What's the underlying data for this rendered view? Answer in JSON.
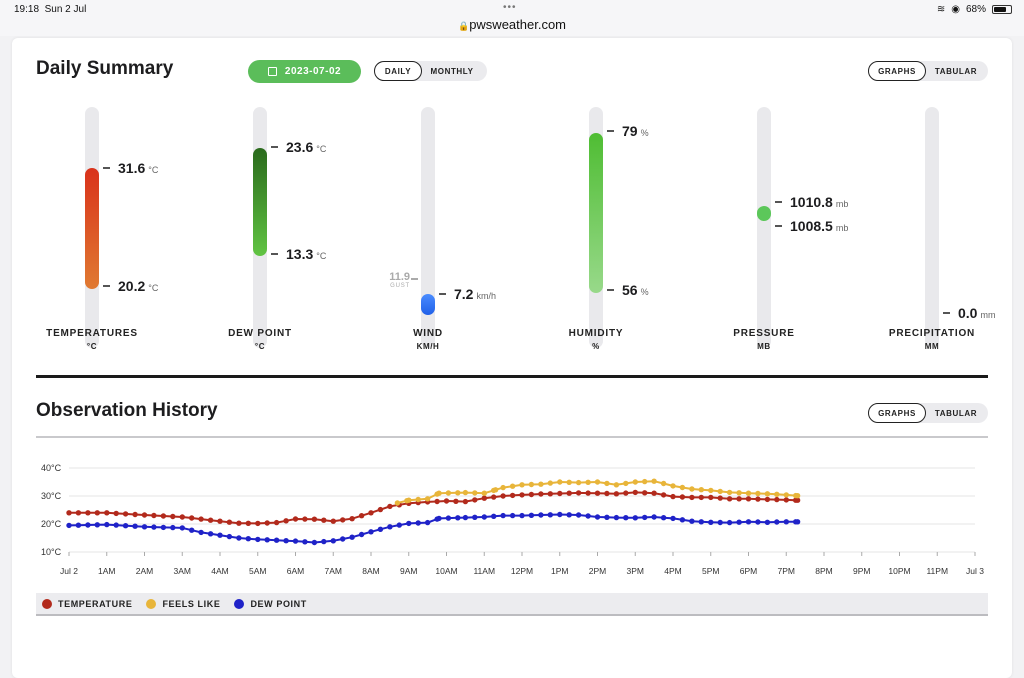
{
  "status": {
    "time": "19:18",
    "date": "Sun 2 Jul",
    "url": "pwsweather.com",
    "battery": "68%"
  },
  "summary": {
    "title": "Daily Summary",
    "date": "2023-07-02",
    "period_tabs": [
      "DAILY",
      "MONTHLY"
    ],
    "period_selected": "DAILY",
    "view_tabs": [
      "GRAPHS",
      "TABULAR"
    ],
    "view_selected": "GRAPHS",
    "gauges": [
      {
        "label": "TEMPERATURES",
        "unit_caption": "°C",
        "high": "31.6",
        "low": "20.2",
        "unit": "°C"
      },
      {
        "label": "DEW POINT",
        "unit_caption": "°C",
        "high": "23.6",
        "low": "13.3",
        "unit": "°C"
      },
      {
        "label": "WIND",
        "unit_caption": "KM/H",
        "value": "7.2",
        "unit": "km/h",
        "gust": "11.9",
        "gust_label": "GUST"
      },
      {
        "label": "HUMIDITY",
        "unit_caption": "%",
        "high": "79",
        "low": "56",
        "unit": "%"
      },
      {
        "label": "PRESSURE",
        "unit_caption": "MB",
        "high": "1010.8",
        "low": "1008.5",
        "unit": "mb"
      },
      {
        "label": "PRECIPITATION",
        "unit_caption": "MM",
        "value": "0.0",
        "unit": "mm"
      }
    ],
    "colors": {
      "temperature": "#d63a1e",
      "dew_point": "#2f7d1f",
      "wind": "#2f6ef0",
      "humidity": "#5cc23b",
      "pressure": "#5cc75a"
    }
  },
  "history": {
    "title": "Observation History",
    "view_tabs": [
      "GRAPHS",
      "TABULAR"
    ],
    "view_selected": "GRAPHS",
    "legend": [
      {
        "name": "TEMPERATURE",
        "color": "#b22a1c"
      },
      {
        "name": "FEELS LIKE",
        "color": "#e8b53a"
      },
      {
        "name": "DEW POINT",
        "color": "#1f22c8"
      }
    ]
  },
  "chart_data": {
    "type": "line",
    "y_ticks": [
      "10°C",
      "20°C",
      "30°C",
      "40°C"
    ],
    "ylim": [
      10,
      40
    ],
    "x_ticks": [
      "Jul 2",
      "1AM",
      "2AM",
      "3AM",
      "4AM",
      "5AM",
      "6AM",
      "7AM",
      "8AM",
      "9AM",
      "10AM",
      "11AM",
      "12PM",
      "1PM",
      "2PM",
      "3PM",
      "4PM",
      "5PM",
      "6PM",
      "7PM",
      "8PM",
      "9PM",
      "10PM",
      "11PM",
      "Jul 3"
    ],
    "x_hours": [
      0,
      1,
      2,
      3,
      4,
      5,
      6,
      7,
      8,
      9,
      10,
      11,
      12,
      13,
      14,
      15,
      16,
      17,
      18,
      19,
      20,
      21,
      22,
      23,
      24
    ],
    "grid": true,
    "series": [
      {
        "name": "TEMPERATURE",
        "color": "#b22a1c",
        "points": [
          [
            0,
            24.0
          ],
          [
            1,
            24.0
          ],
          [
            2,
            23.2
          ],
          [
            3,
            22.5
          ],
          [
            4,
            21.0
          ],
          [
            4.5,
            20.3
          ],
          [
            5,
            20.2
          ],
          [
            5.5,
            20.5
          ],
          [
            6,
            21.8
          ],
          [
            6.5,
            21.7
          ],
          [
            7,
            21.0
          ],
          [
            7.5,
            21.9
          ],
          [
            8,
            24.0
          ],
          [
            8.5,
            26.3
          ],
          [
            9,
            27.4
          ],
          [
            9.5,
            27.9
          ],
          [
            10,
            28.2
          ],
          [
            10.5,
            28.0
          ],
          [
            11,
            29.2
          ],
          [
            11.5,
            30.0
          ],
          [
            12,
            30.4
          ],
          [
            12.5,
            30.7
          ],
          [
            13,
            30.9
          ],
          [
            13.5,
            31.1
          ],
          [
            14,
            31.0
          ],
          [
            14.5,
            30.8
          ],
          [
            15,
            31.3
          ],
          [
            15.5,
            31.0
          ],
          [
            16,
            29.8
          ],
          [
            16.5,
            29.5
          ],
          [
            17,
            29.5
          ],
          [
            17.5,
            29.0
          ],
          [
            18,
            29.0
          ],
          [
            18.5,
            28.8
          ],
          [
            19,
            28.6
          ],
          [
            19.3,
            28.5
          ]
        ]
      },
      {
        "name": "FEELS LIKE",
        "color": "#e8b53a",
        "points": [
          [
            8.7,
            27.5
          ],
          [
            9,
            28.5
          ],
          [
            9.5,
            29.0
          ],
          [
            9.8,
            31.0
          ],
          [
            10.5,
            31.2
          ],
          [
            11,
            31.0
          ],
          [
            11.3,
            32.2
          ],
          [
            11.5,
            33.0
          ],
          [
            12,
            34.0
          ],
          [
            12.5,
            34.2
          ],
          [
            13,
            35.0
          ],
          [
            13.5,
            34.8
          ],
          [
            14,
            35.0
          ],
          [
            14.5,
            34.0
          ],
          [
            15,
            35.0
          ],
          [
            15.5,
            35.3
          ],
          [
            16,
            33.6
          ],
          [
            16.5,
            32.5
          ],
          [
            17,
            32.0
          ],
          [
            17.5,
            31.3
          ],
          [
            18,
            31.0
          ],
          [
            18.5,
            30.8
          ],
          [
            19,
            30.4
          ],
          [
            19.3,
            30.1
          ]
        ]
      },
      {
        "name": "DEW POINT",
        "color": "#1f22c8",
        "points": [
          [
            0,
            19.5
          ],
          [
            1,
            19.8
          ],
          [
            2,
            19.0
          ],
          [
            3,
            18.6
          ],
          [
            3.5,
            17.0
          ],
          [
            4,
            16.0
          ],
          [
            4.5,
            15.0
          ],
          [
            5,
            14.5
          ],
          [
            5.5,
            14.2
          ],
          [
            6,
            13.9
          ],
          [
            6.5,
            13.4
          ],
          [
            7,
            14.0
          ],
          [
            7.5,
            15.3
          ],
          [
            8,
            17.2
          ],
          [
            8.5,
            19.0
          ],
          [
            9,
            20.2
          ],
          [
            9.5,
            20.5
          ],
          [
            9.8,
            22.0
          ],
          [
            10.5,
            22.3
          ],
          [
            11,
            22.5
          ],
          [
            11.5,
            23.0
          ],
          [
            12,
            23.0
          ],
          [
            12.5,
            23.2
          ],
          [
            13,
            23.4
          ],
          [
            13.5,
            23.2
          ],
          [
            14,
            22.5
          ],
          [
            14.5,
            22.3
          ],
          [
            15,
            22.2
          ],
          [
            15.5,
            22.5
          ],
          [
            16,
            22.0
          ],
          [
            16.5,
            21.0
          ],
          [
            17,
            20.6
          ],
          [
            17.5,
            20.5
          ],
          [
            18,
            20.8
          ],
          [
            18.5,
            20.6
          ],
          [
            19,
            20.8
          ],
          [
            19.3,
            20.8
          ]
        ]
      }
    ]
  }
}
